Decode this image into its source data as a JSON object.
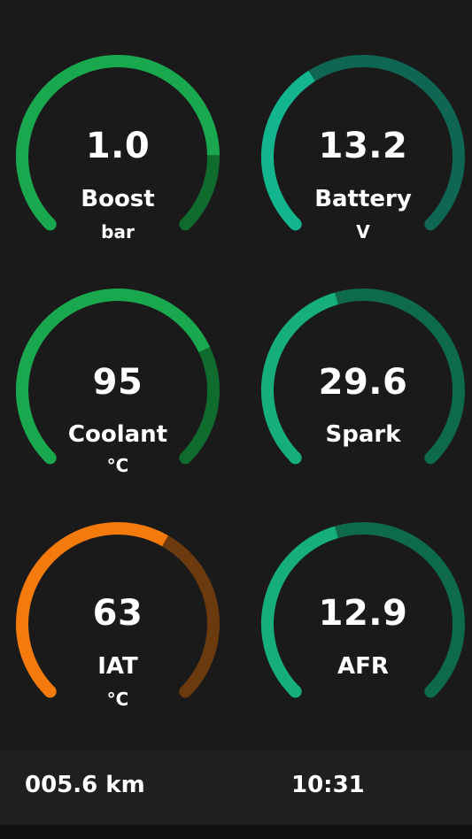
{
  "colors": {
    "background": "#1a1a1a",
    "footer_bg": "#1f1f1f",
    "text": "#ffffff"
  },
  "gauges": [
    {
      "value": "1.0",
      "label": "Boost",
      "unit": "bar",
      "fill_fraction": 0.83,
      "active_color": "#1aa84e",
      "track_color": "#0f6b2e"
    },
    {
      "value": "13.2",
      "label": "Battery",
      "unit": "V",
      "fill_fraction": 0.38,
      "active_color": "#13b58e",
      "track_color": "#0e6653"
    },
    {
      "value": "95",
      "label": "Coolant",
      "unit": "°C",
      "fill_fraction": 0.74,
      "active_color": "#1aa84e",
      "track_color": "#0f6b2e"
    },
    {
      "value": "29.6",
      "label": "Spark",
      "unit": "",
      "fill_fraction": 0.44,
      "active_color": "#16ae7a",
      "track_color": "#0e6a4d"
    },
    {
      "value": "63",
      "label": "IAT",
      "unit": "°C",
      "fill_fraction": 0.61,
      "active_color": "#f57a0c",
      "track_color": "#6b3a0e"
    },
    {
      "value": "12.9",
      "label": "AFR",
      "unit": "",
      "fill_fraction": 0.44,
      "active_color": "#16ae7a",
      "track_color": "#0e6a4d"
    }
  ],
  "footer": {
    "odometer": "005.6  km",
    "clock": "10:31"
  }
}
